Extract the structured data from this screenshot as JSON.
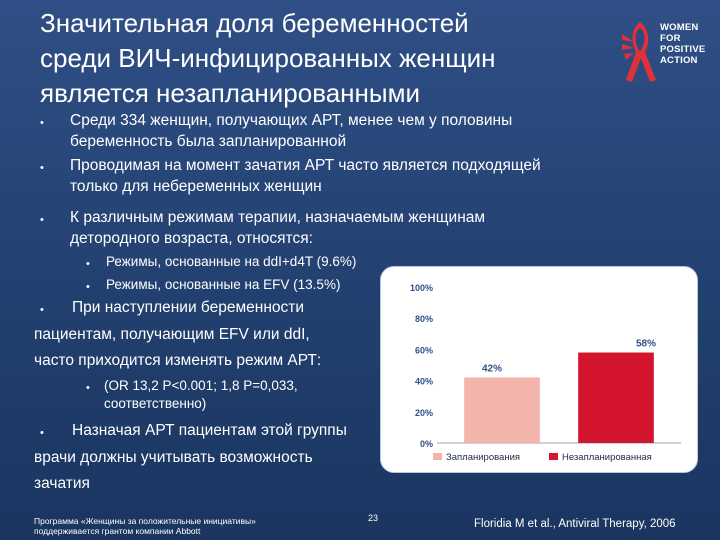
{
  "slide": {
    "title_lines": [
      "Значительная доля беременностей",
      "среди ВИЧ-инфицированных женщин",
      "является незапланированными"
    ]
  },
  "logo": {
    "lines": [
      "WOMEN",
      "FOR",
      "POSITIVE",
      "ACTION"
    ],
    "icon": "ribbon-wings-icon",
    "color": "#e0313a"
  },
  "bullets": [
    {
      "lines": [
        "Среди 334 женщин, получающих АРТ, менее чем у половины",
        "беременность была запланированной"
      ]
    },
    {
      "lines": [
        "Проводимая на момент зачатия АРТ часто является подходящей",
        "только для небеременных женщин"
      ]
    },
    {
      "lines": [
        "К различным режимам терапии, назначаемым женщинам",
        "детородного возраста, относятся:"
      ]
    }
  ],
  "sub_bullets": [
    "Режимы, основанные на ddI+d4T (9.6%)",
    "Режимы, основанные на EFV (13.5%)"
  ],
  "bullet4": {
    "first": "При наступлении беременности",
    "continuation": [
      "пациентам, получающим EFV или ddI,",
      "часто приходится изменять режим АРТ:"
    ]
  },
  "sub_bullet3": {
    "line1": "(OR 13,2 P<0.001; 1,8 P=0,033,",
    "line2": "соответственно)"
  },
  "bullet5": {
    "first": "Назначая АРТ пациентам этой группы",
    "continuation": [
      "врачи должны учитывать возможность",
      "зачатия"
    ]
  },
  "chart_data": {
    "type": "bar",
    "categories": [
      "Запланирования",
      "Незапланированная"
    ],
    "values": [
      42,
      58
    ],
    "value_labels": [
      "42%",
      "58%"
    ],
    "ylim": [
      0,
      100
    ],
    "yticks": [
      "0%",
      "20%",
      "40%",
      "60%",
      "80%",
      "100%"
    ],
    "colors": [
      "#f3b4ac",
      "#d3152d"
    ],
    "tick_color": "#2f4f86",
    "legend": "bottom"
  },
  "footer": {
    "program_line1": "Программа «Женщины за положительные инициативы»",
    "program_line2": "поддерживается грантом компании Abbott",
    "page_number": "23",
    "citation": "Floridia M et al., Antiviral Therapy, 2006"
  }
}
